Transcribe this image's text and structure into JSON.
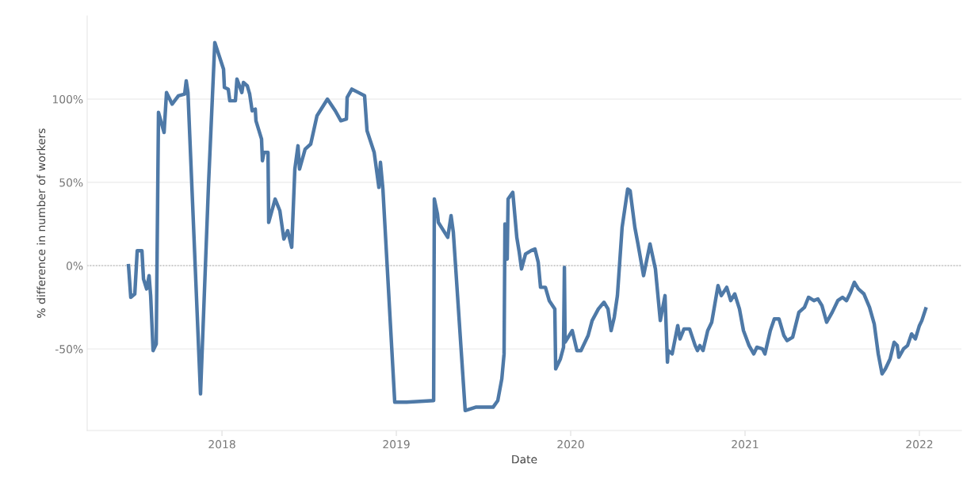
{
  "chart_data": {
    "type": "line",
    "xlabel": "Date",
    "ylabel": "% difference in number of workers",
    "x": [
      2017.464,
      2017.477,
      2017.5,
      2017.514,
      2017.541,
      2017.55,
      2017.568,
      2017.582,
      2017.591,
      2017.605,
      2017.623,
      2017.636,
      2017.668,
      2017.682,
      2017.714,
      2017.75,
      2017.786,
      2017.795,
      2017.805,
      2017.877,
      2017.923,
      2017.959,
      2018.009,
      2018.014,
      2018.036,
      2018.045,
      2018.077,
      2018.086,
      2018.114,
      2018.123,
      2018.145,
      2018.159,
      2018.173,
      2018.191,
      2018.195,
      2018.227,
      2018.232,
      2018.241,
      2018.264,
      2018.268,
      2018.305,
      2018.332,
      2018.355,
      2018.377,
      2018.4,
      2018.418,
      2018.436,
      2018.445,
      2018.477,
      2018.509,
      2018.545,
      2018.605,
      2018.65,
      2018.682,
      2018.714,
      2018.718,
      2018.745,
      2018.782,
      2018.818,
      2018.832,
      2018.873,
      2018.9,
      2018.909,
      2018.923,
      2018.991,
      2019.059,
      2019.214,
      2019.218,
      2019.236,
      2019.241,
      2019.295,
      2019.314,
      2019.327,
      2019.395,
      2019.455,
      2019.555,
      2019.582,
      2019.605,
      2019.618,
      2019.623,
      2019.636,
      2019.641,
      2019.668,
      2019.691,
      2019.705,
      2019.718,
      2019.741,
      2019.773,
      2019.795,
      2019.814,
      2019.827,
      2019.855,
      2019.877,
      2019.909,
      2019.914,
      2019.941,
      2019.959,
      2019.964,
      2019.968,
      2020.009,
      2020.036,
      2020.059,
      2020.1,
      2020.123,
      2020.159,
      2020.191,
      2020.214,
      2020.232,
      2020.25,
      2020.268,
      2020.295,
      2020.327,
      2020.341,
      2020.368,
      2020.386,
      2020.418,
      2020.455,
      2020.486,
      2020.514,
      2020.541,
      2020.555,
      2020.559,
      2020.582,
      2020.614,
      2020.627,
      2020.65,
      2020.682,
      2020.714,
      2020.727,
      2020.741,
      2020.759,
      2020.786,
      2020.809,
      2020.845,
      2020.864,
      2020.895,
      2020.918,
      2020.941,
      2020.968,
      2020.991,
      2021.023,
      2021.05,
      2021.068,
      2021.1,
      2021.114,
      2021.145,
      2021.168,
      2021.195,
      2021.223,
      2021.241,
      2021.273,
      2021.309,
      2021.341,
      2021.364,
      2021.395,
      2021.418,
      2021.441,
      2021.468,
      2021.5,
      2021.532,
      2021.559,
      2021.582,
      2021.605,
      2021.627,
      2021.65,
      2021.682,
      2021.714,
      2021.741,
      2021.764,
      2021.786,
      2021.805,
      2021.832,
      2021.855,
      2021.873,
      2021.882,
      2021.909,
      2021.932,
      2021.955,
      2021.977,
      2022.0,
      2022.014,
      2022.036
    ],
    "series": [
      {
        "color": "#4e79a7",
        "values": [
          0,
          -19,
          -17,
          9,
          9,
          -8,
          -14,
          -6,
          -18,
          -51,
          -47,
          92,
          80,
          104,
          97,
          102,
          103,
          111,
          104,
          -77,
          49,
          134,
          118,
          107,
          106,
          99,
          99,
          112,
          104,
          110,
          108,
          103,
          93,
          94,
          87,
          76,
          63,
          68,
          68,
          26,
          40,
          33,
          16,
          21,
          11,
          58,
          72,
          58,
          70,
          73,
          90,
          100,
          93,
          87,
          88,
          101,
          106,
          104,
          102,
          81,
          68,
          47,
          62,
          46,
          -82,
          -82,
          -81,
          40,
          31,
          26,
          17,
          30,
          20,
          -87,
          -85,
          -85,
          -81,
          -68,
          -53,
          25,
          4,
          40,
          44,
          17,
          8,
          -2,
          7,
          9,
          10,
          2,
          -13,
          -13,
          -21,
          -26,
          -62,
          -56,
          -49,
          -1,
          -46,
          -39,
          -51,
          -51,
          -42,
          -33,
          -26,
          -22,
          -26,
          -39,
          -31,
          -18,
          23,
          46,
          45,
          23,
          13,
          -6,
          13,
          -2,
          -33,
          -18,
          -58,
          -51,
          -53,
          -36,
          -44,
          -38,
          -38,
          -48,
          -51,
          -48,
          -51,
          -39,
          -34,
          -12,
          -18,
          -13,
          -21,
          -17,
          -26,
          -39,
          -48,
          -53,
          -49,
          -50,
          -53,
          -39,
          -32,
          -32,
          -42,
          -45,
          -43,
          -28,
          -25,
          -19,
          -21,
          -20,
          -24,
          -34,
          -28,
          -21,
          -19,
          -21,
          -16,
          -10,
          -14,
          -17,
          -25,
          -35,
          -53,
          -65,
          -62,
          -56,
          -46,
          -48,
          -55,
          -50,
          -48,
          -41,
          -44,
          -36,
          -33,
          -26
        ]
      }
    ],
    "xlim": [
      2017.227,
      2022.241
    ],
    "ylim": [
      -99,
      150
    ],
    "xticks": [
      2018,
      2019,
      2020,
      2021,
      2022
    ],
    "yticks": [
      {
        "value": -50,
        "label": "-50%"
      },
      {
        "value": 0,
        "label": "0%"
      },
      {
        "value": 50,
        "label": "50%"
      },
      {
        "value": 100,
        "label": "100%"
      }
    ],
    "grid": "y",
    "line_style": "solid",
    "ref_lines": [
      {
        "axis": "y",
        "value": 0,
        "line_style": "dotted",
        "color": "#bbbbbb"
      }
    ]
  }
}
